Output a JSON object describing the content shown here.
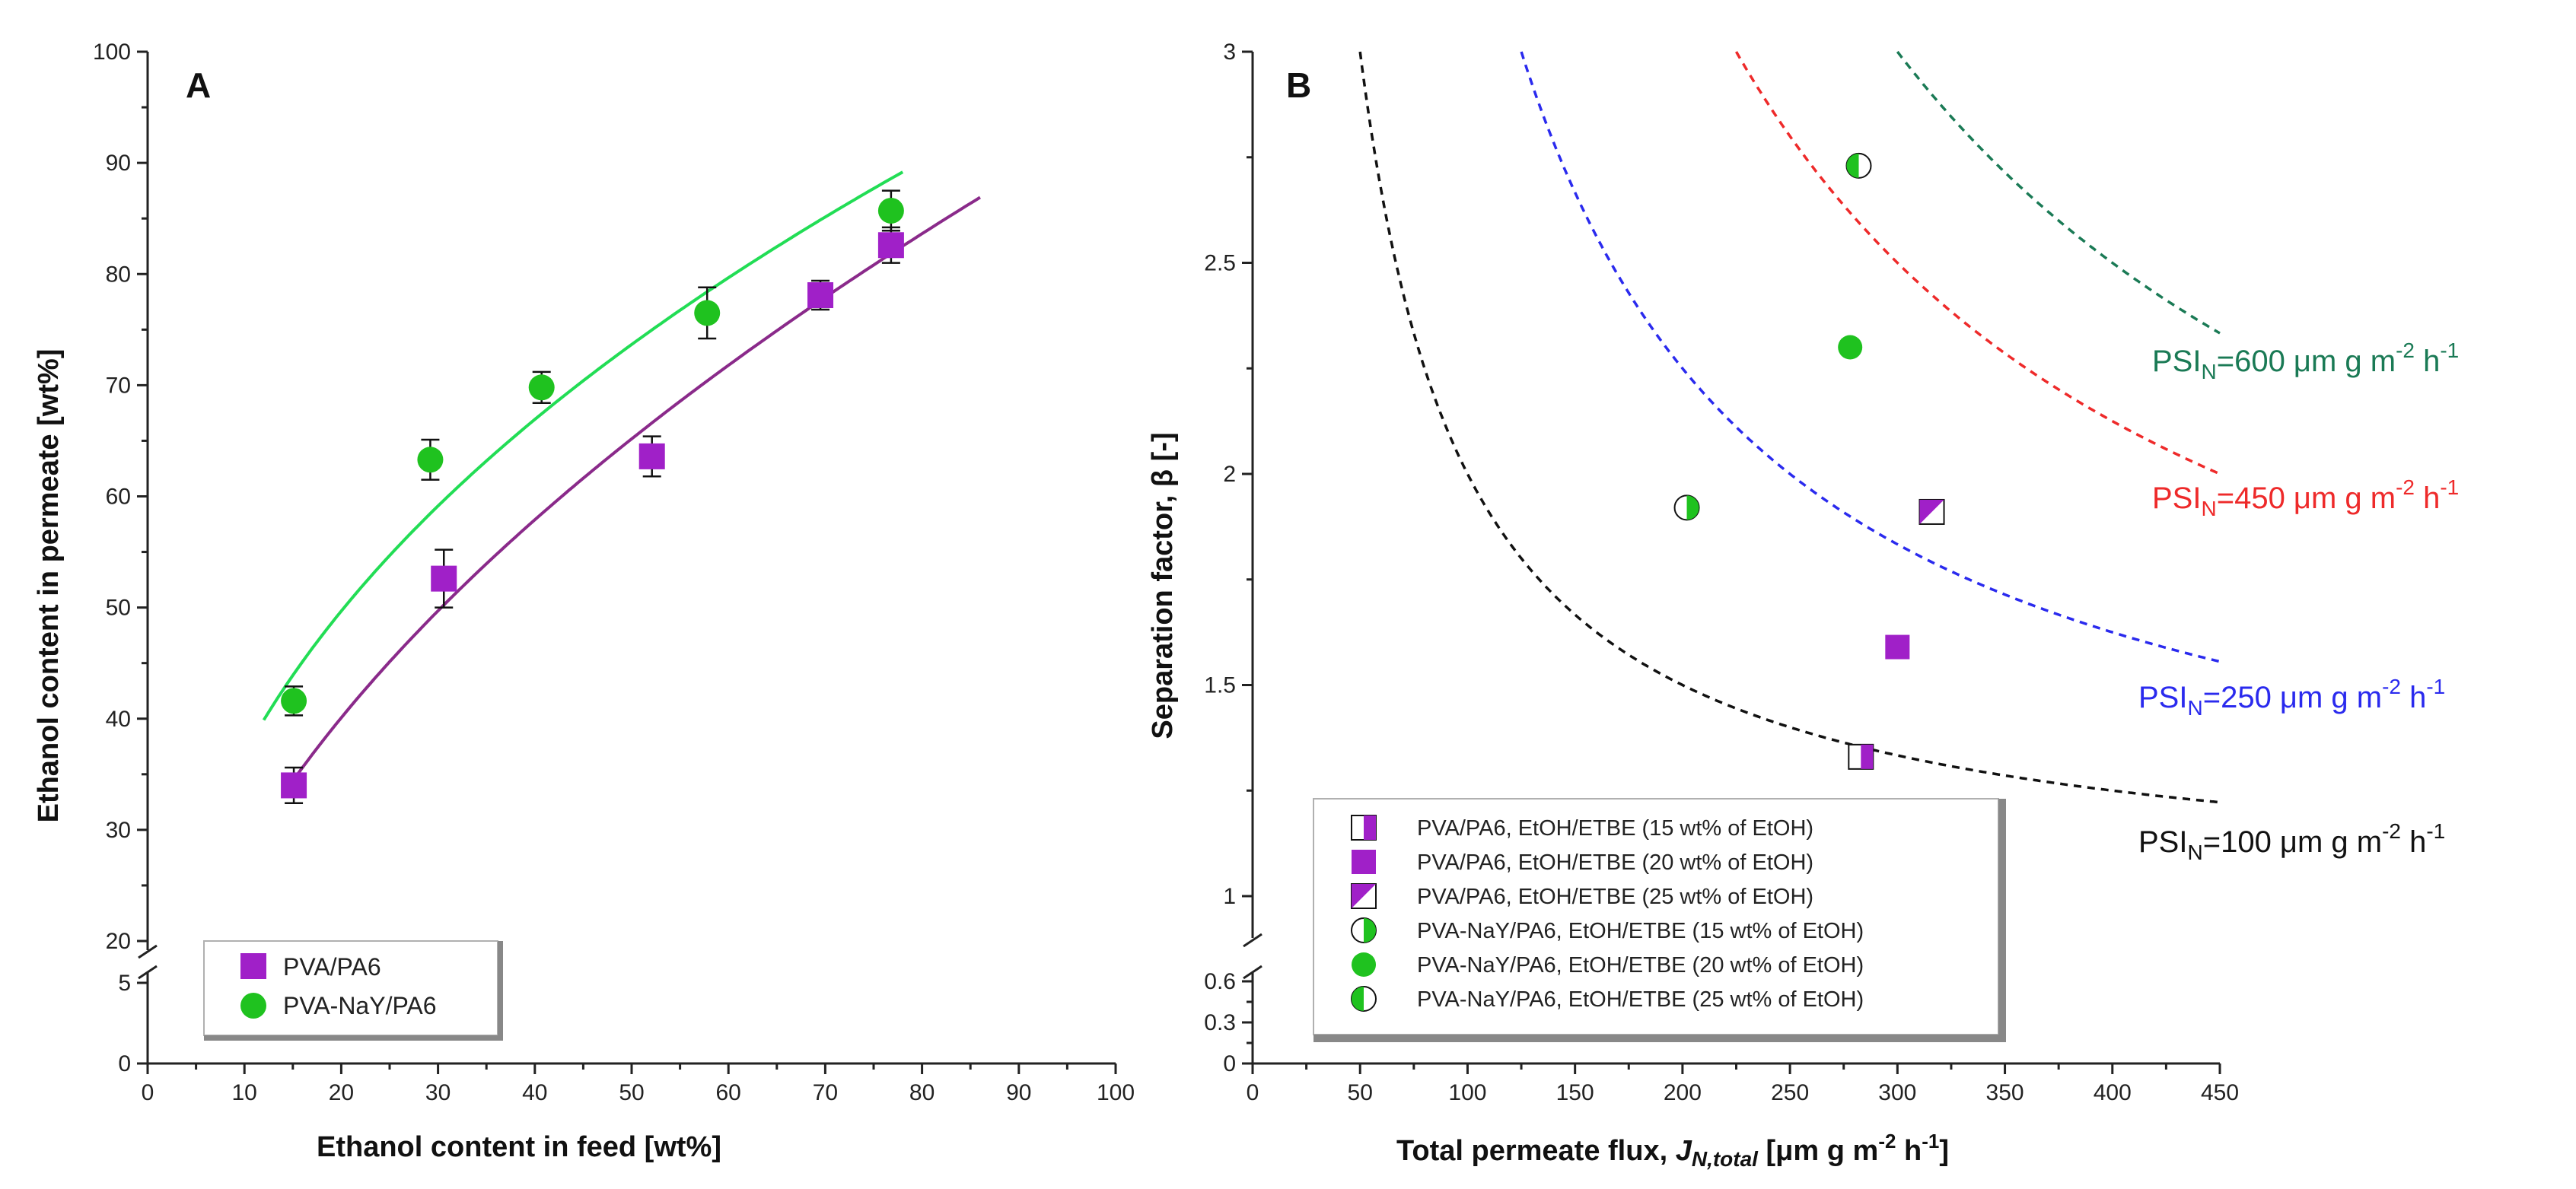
{
  "colors": {
    "purple": "#a020c8",
    "green": "#1fc21f",
    "green_line": "#22dd55",
    "purple_line": "#8a2a8a",
    "psi600": "#1a7a55",
    "psi450": "#ee2a2a",
    "psi250": "#2a2aee",
    "psi100": "#111111"
  },
  "chart_data": [
    {
      "panel": "A",
      "type": "scatter",
      "title": "A",
      "xlabel": "Ethanol content in feed [wt%]",
      "ylabel": "Ethanol content in permeate [wt%]",
      "xlim": [
        0,
        100
      ],
      "ylim": [
        0,
        100
      ],
      "y_axis_break": "between 5 and 20",
      "x_ticks": [
        "0",
        "10",
        "20",
        "30",
        "40",
        "50",
        "60",
        "70",
        "80",
        "90",
        "100"
      ],
      "y_ticks": [
        "0",
        "5",
        "20",
        "30",
        "40",
        "50",
        "60",
        "70",
        "80",
        "90",
        "100"
      ],
      "legend_position": "bottom-left",
      "series": [
        {
          "name": "PVA/PA6",
          "marker": "square",
          "x": [
            15.1,
            30.6,
            52.1,
            69.5,
            76.8
          ],
          "y": [
            34.0,
            52.6,
            63.6,
            78.1,
            82.6
          ],
          "err": [
            1.6,
            2.6,
            1.8,
            1.3,
            1.6
          ],
          "fit": {
            "from": 15,
            "to": 86
          }
        },
        {
          "name": "PVA-NaY/PA6",
          "marker": "circle",
          "x": [
            15.1,
            29.2,
            40.7,
            57.8,
            76.8
          ],
          "y": [
            41.6,
            63.3,
            69.8,
            76.5,
            85.7
          ],
          "err": [
            1.3,
            1.8,
            1.4,
            2.3,
            1.8
          ],
          "fit": {
            "from": 12,
            "to": 78
          }
        }
      ]
    },
    {
      "panel": "B",
      "type": "scatter",
      "title": "B",
      "xlabel_main": "Total permeate flux, ",
      "xlabel_var": "J",
      "xlabel_var_sub": "N,total",
      "xlabel_units_pre": " [μm g m",
      "xlabel_units_exp1": "-2",
      "xlabel_units_mid": " h",
      "xlabel_units_exp2": "-1",
      "xlabel_units_post": "]",
      "ylabel": "Separation factor, β [-]",
      "xlim": [
        0,
        450
      ],
      "ylim": [
        0,
        3
      ],
      "y_axis_break": "between 0.6 and 0.9",
      "x_ticks": [
        "0",
        "50",
        "100",
        "150",
        "200",
        "250",
        "300",
        "350",
        "400",
        "450"
      ],
      "y_ticks": [
        "0",
        "0.3",
        "0.6",
        "1",
        "1.5",
        "2",
        "2.5",
        "3"
      ],
      "legend_position": "bottom-left",
      "series": [
        {
          "name": "PVA/PA6, EtOH/ETBE (15 wt% of EtOH)",
          "marker": "square-half-right",
          "x": [
            283
          ],
          "y": [
            1.33
          ]
        },
        {
          "name": "PVA/PA6, EtOH/ETBE (20 wt% of EtOH)",
          "marker": "square",
          "x": [
            300
          ],
          "y": [
            1.59
          ]
        },
        {
          "name": "PVA/PA6, EtOH/ETBE (25 wt% of EtOH)",
          "marker": "square-half-diagonal",
          "x": [
            316
          ],
          "y": [
            1.91
          ]
        },
        {
          "name": "PVA-NaY/PA6, EtOH/ETBE (15 wt% of EtOH)",
          "marker": "circle-half-right",
          "x": [
            202
          ],
          "y": [
            1.92
          ]
        },
        {
          "name": "PVA-NaY/PA6, EtOH/ETBE (20 wt% of EtOH)",
          "marker": "circle",
          "x": [
            278
          ],
          "y": [
            2.3
          ]
        },
        {
          "name": "PVA-NaY/PA6, EtOH/ETBE (25 wt% of EtOH)",
          "marker": "circle-half-left",
          "x": [
            282
          ],
          "y": [
            2.73
          ]
        }
      ],
      "psi_curves": [
        {
          "name": "PSI_N=600",
          "psi": 600,
          "from": 300,
          "to": 450
        },
        {
          "name": "PSI_N=450",
          "psi": 450,
          "from": 225,
          "to": 450
        },
        {
          "name": "PSI_N=250",
          "psi": 250,
          "from": 125,
          "to": 450
        },
        {
          "name": "PSI_N=100",
          "psi": 100,
          "from": 50,
          "to": 450
        }
      ]
    }
  ],
  "panelA": {
    "label": "A",
    "xlabel": "Ethanol content in feed [wt%]",
    "ylabel": "Ethanol content in permeate [wt%]",
    "legend": [
      "PVA/PA6",
      "PVA-NaY/PA6"
    ]
  },
  "panelB": {
    "label": "B",
    "ylabel": "Separation factor, β [-]",
    "legend": [
      "PVA/PA6, EtOH/ETBE (15 wt% of EtOH)",
      "PVA/PA6, EtOH/ETBE (20 wt% of EtOH)",
      "PVA/PA6, EtOH/ETBE (25 wt% of EtOH)",
      "PVA-NaY/PA6, EtOH/ETBE (15 wt% of EtOH)",
      "PVA-NaY/PA6, EtOH/ETBE (20 wt% of EtOH)",
      "PVA-NaY/PA6, EtOH/ETBE (25 wt% of EtOH)"
    ],
    "psi_labels": [
      {
        "prefix": "PSI",
        "sub": "N",
        "value": "=600 μm g m",
        "exp1": "-2",
        "mid": " h",
        "exp2": "-1"
      },
      {
        "prefix": "PSI",
        "sub": "N",
        "value": "=450 μm g m",
        "exp1": "-2",
        "mid": " h",
        "exp2": "-1"
      },
      {
        "prefix": "PSI",
        "sub": "N",
        "value": "=250 μm g m",
        "exp1": "-2",
        "mid": " h",
        "exp2": "-1"
      },
      {
        "prefix": "PSI",
        "sub": "N",
        "value": "=100 μm g m",
        "exp1": "-2",
        "mid": " h",
        "exp2": "-1"
      }
    ]
  }
}
